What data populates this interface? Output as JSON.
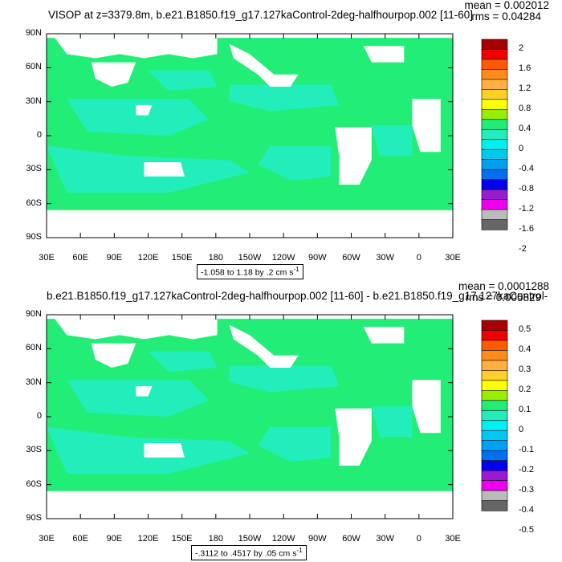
{
  "panels": [
    {
      "title": "VISOP at z=3379.8m, b.e21.B1850.f19_g17.127kaControl-2deg-halfhourpop.002 [11-60]",
      "mean": "mean = 0.002012",
      "rms": "rms = 0.04284",
      "range_label": "-1.058 to 1.18 by .2 cm s",
      "range_superscript": "-1",
      "colorbar_labels": [
        "2",
        "1.6",
        "1.2",
        "0.8",
        "0.4",
        "0",
        "-0.4",
        "-0.8",
        "-1.2",
        "-1.6",
        "-2"
      ]
    },
    {
      "title": "b.e21.B1850.f19_g17.127kaControl-2deg-halfhourpop.002 [11-60] - b.e21.B1850.f19_g17.127kaControl-",
      "mean": "mean = 0.0001288",
      "rms": "rms = 0.005829",
      "range_label": "-.3112 to .4517 by .05 cm s",
      "range_superscript": "-1",
      "colorbar_labels": [
        "0.5",
        "0.4",
        "0.3",
        "0.2",
        "0.1",
        "0",
        "-0.1",
        "-0.2",
        "-0.3",
        "-0.4",
        "-0.5"
      ]
    }
  ],
  "map": {
    "lat_labels": [
      "90N",
      "60N",
      "30N",
      "0",
      "30S",
      "60S",
      "90S"
    ],
    "lon_labels": [
      "30E",
      "60E",
      "90E",
      "120E",
      "150E",
      "180",
      "150W",
      "120W",
      "90W",
      "60W",
      "30W",
      "0",
      "30E"
    ],
    "ocean_color": "#22ee77",
    "cyan_color": "#22eebb",
    "land_color": "#ffffff"
  },
  "colorbar_colors": [
    "#a60000",
    "#ee0000",
    "#ff5a00",
    "#ff8c1a",
    "#ffb040",
    "#ffd02a",
    "#ffff00",
    "#99ee00",
    "#22ee77",
    "#22eebb",
    "#00f0f0",
    "#00c8f0",
    "#00a0f0",
    "#0070f0",
    "#0000ee",
    "#9a1ad0",
    "#ee00ee",
    "#bbbbbb",
    "#666666"
  ]
}
